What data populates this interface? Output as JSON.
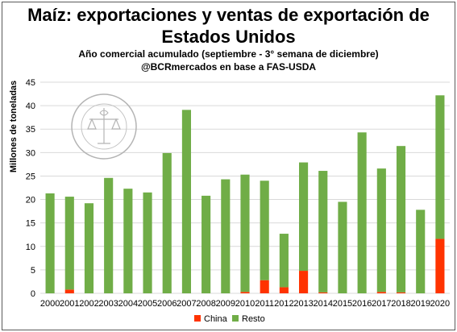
{
  "chart_data": {
    "type": "bar",
    "stacked": true,
    "title": "Maíz: exportaciones y ventas de exportación de Estados Unidos",
    "title_line1": "Maíz: exportaciones y ventas de exportación de",
    "title_line2": "Estados Unidos",
    "subtitle_line1": "Año comercial acumulado (septiembre - 3° semana de diciembre)",
    "subtitle_line2": "@BCRmercados  en base a FAS-USDA",
    "ylabel": "Millones de toneladas",
    "xlabel": "",
    "ylim": [
      0,
      45
    ],
    "yticks": [
      0,
      5,
      10,
      15,
      20,
      25,
      30,
      35,
      40,
      45
    ],
    "grid": true,
    "legend_position": "bottom",
    "categories": [
      "2000",
      "2001",
      "2002",
      "2003",
      "2004",
      "2005",
      "2006",
      "2007",
      "2008",
      "2009",
      "2010",
      "2011",
      "2012",
      "2013",
      "2014",
      "2015",
      "2016",
      "2017",
      "2018",
      "2019",
      "2020"
    ],
    "series": [
      {
        "name": "China",
        "color": "#ff3300",
        "values": [
          0,
          0.8,
          0,
          0,
          0,
          0,
          0,
          0,
          0,
          0,
          0.3,
          2.8,
          1.3,
          4.8,
          0.2,
          0,
          0,
          0.3,
          0.2,
          0,
          11.6
        ]
      },
      {
        "name": "Resto",
        "color": "#70ad47",
        "values": [
          21.3,
          19.8,
          19.2,
          24.6,
          22.3,
          21.5,
          29.9,
          39.1,
          20.8,
          24.3,
          25.0,
          21.2,
          11.4,
          23.1,
          25.9,
          19.5,
          34.3,
          26.3,
          31.2,
          17.8,
          30.6
        ]
      }
    ]
  },
  "watermark": {
    "kind": "seal",
    "text": "BOLSA DE COMERCIO DE ROSARIO"
  }
}
